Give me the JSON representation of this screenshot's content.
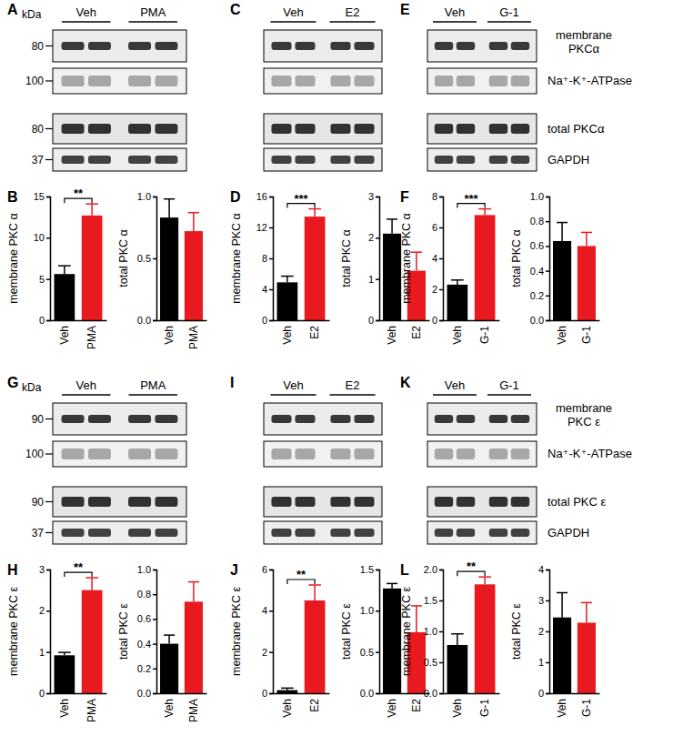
{
  "panel_labels": [
    "A",
    "B",
    "C",
    "D",
    "E",
    "F",
    "G",
    "H",
    "I",
    "J",
    "K",
    "L"
  ],
  "blots": [
    {
      "unit": "kDa",
      "groups": [
        "Veh",
        "PMA"
      ],
      "markers": [
        80,
        100,
        80,
        37
      ]
    },
    {
      "groups": [
        "Veh",
        "E2"
      ]
    },
    {
      "groups": [
        "Veh",
        "G-1"
      ],
      "row_labels": [
        [
          "membrane",
          "PKCα"
        ],
        [
          "Na⁺-K⁺-ATPase"
        ],
        [
          "total PKCα"
        ],
        [
          "GAPDH"
        ]
      ]
    },
    {
      "unit": "kDa",
      "groups": [
        "Veh",
        "PMA"
      ],
      "markers": [
        90,
        100,
        90,
        37
      ]
    },
    {
      "groups": [
        "Veh",
        "E2"
      ]
    },
    {
      "groups": [
        "Veh",
        "G-1"
      ],
      "row_labels": [
        [
          "membrane",
          "PKC ε"
        ],
        [
          "Na⁺-K⁺-ATPase"
        ],
        [
          "total PKC ε"
        ],
        [
          "GAPDH"
        ]
      ]
    }
  ],
  "chart_data": [
    {
      "type": "bar",
      "y_label": "membrane PKC α",
      "categories": [
        "Veh",
        "PMA"
      ],
      "values": [
        5.6,
        12.7
      ],
      "errors": [
        1.0,
        1.4
      ],
      "colors": [
        "#000000",
        "#e8191f"
      ],
      "ylim": [
        0,
        15
      ],
      "yticks": [
        0,
        5,
        10,
        15
      ],
      "annotations": [
        {
          "text": "**"
        }
      ]
    },
    {
      "type": "bar",
      "y_label": "total PKC α",
      "categories": [
        "Veh",
        "PMA"
      ],
      "values": [
        0.83,
        0.72
      ],
      "errors": [
        0.15,
        0.15
      ],
      "colors": [
        "#000000",
        "#e8191f"
      ],
      "ylim": [
        0,
        1
      ],
      "yticks": [
        {
          "value": 0,
          "label": "0.0"
        },
        {
          "value": 0.5,
          "label": "0.5"
        },
        {
          "value": 1,
          "label": "1.0"
        }
      ]
    },
    {
      "type": "bar",
      "y_label": "membrane PKC α",
      "categories": [
        "Veh",
        "E2"
      ],
      "values": [
        4.9,
        13.4
      ],
      "errors": [
        0.8,
        1.0
      ],
      "colors": [
        "#000000",
        "#e8191f"
      ],
      "ylim": [
        0,
        16
      ],
      "yticks": [
        0,
        4,
        8,
        12,
        16
      ],
      "annotations": [
        {
          "text": "***"
        }
      ]
    },
    {
      "type": "bar",
      "y_label": "total PKC α",
      "categories": [
        "Veh",
        "E2"
      ],
      "values": [
        2.1,
        1.2
      ],
      "errors": [
        0.35,
        0.45
      ],
      "colors": [
        "#000000",
        "#e8191f"
      ],
      "ylim": [
        0,
        3
      ],
      "yticks": [
        0,
        1,
        2,
        3
      ]
    },
    {
      "type": "bar",
      "y_label": "membrane PKC α",
      "categories": [
        "Veh",
        "G-1"
      ],
      "values": [
        2.3,
        6.8
      ],
      "errors": [
        0.3,
        0.4
      ],
      "colors": [
        "#000000",
        "#e8191f"
      ],
      "ylim": [
        0,
        8
      ],
      "yticks": [
        0,
        2,
        4,
        6,
        8
      ],
      "annotations": [
        {
          "text": "***"
        }
      ]
    },
    {
      "type": "bar",
      "y_label": "total PKC α",
      "categories": [
        "Veh",
        "G-1"
      ],
      "values": [
        0.64,
        0.6
      ],
      "errors": [
        0.15,
        0.11
      ],
      "colors": [
        "#000000",
        "#e8191f"
      ],
      "ylim": [
        0,
        1
      ],
      "yticks": [
        {
          "value": 0,
          "label": "0.0"
        },
        {
          "value": 0.2,
          "label": "0.2"
        },
        {
          "value": 0.4,
          "label": "0.4"
        },
        {
          "value": 0.6,
          "label": "0.6"
        },
        {
          "value": 0.8,
          "label": "0.8"
        },
        {
          "value": 1,
          "label": "1.0"
        }
      ]
    },
    {
      "type": "bar",
      "y_label": "membrane PKC ε",
      "categories": [
        "Veh",
        "PMA"
      ],
      "values": [
        0.92,
        2.5
      ],
      "errors": [
        0.07,
        0.3
      ],
      "colors": [
        "#000000",
        "#e8191f"
      ],
      "ylim": [
        0,
        3
      ],
      "yticks": [
        0,
        1,
        2,
        3
      ],
      "annotations": [
        {
          "text": "**"
        }
      ]
    },
    {
      "type": "bar",
      "y_label": "total PKC ε",
      "categories": [
        "Veh",
        "PMA"
      ],
      "values": [
        0.4,
        0.74
      ],
      "errors": [
        0.07,
        0.16
      ],
      "colors": [
        "#000000",
        "#e8191f"
      ],
      "ylim": [
        0,
        1
      ],
      "yticks": [
        {
          "value": 0,
          "label": "0.0"
        },
        {
          "value": 0.2,
          "label": "0.2"
        },
        {
          "value": 0.4,
          "label": "0.4"
        },
        {
          "value": 0.6,
          "label": "0.6"
        },
        {
          "value": 0.8,
          "label": "0.8"
        },
        {
          "value": 1,
          "label": "1.0"
        }
      ]
    },
    {
      "type": "bar",
      "y_label": "membrane PKC ε",
      "categories": [
        "Veh",
        "E2"
      ],
      "values": [
        0.15,
        4.5
      ],
      "errors": [
        0.1,
        0.75
      ],
      "colors": [
        "#000000",
        "#e8191f"
      ],
      "ylim": [
        0,
        6
      ],
      "yticks": [
        0,
        2,
        4,
        6
      ],
      "annotations": [
        {
          "text": "**"
        }
      ]
    },
    {
      "type": "bar",
      "y_label": "total PKC ε",
      "categories": [
        "Veh",
        "E2"
      ],
      "values": [
        1.27,
        0.74
      ],
      "errors": [
        0.06,
        0.32
      ],
      "colors": [
        "#000000",
        "#e8191f"
      ],
      "ylim": [
        0,
        1.5
      ],
      "yticks": [
        {
          "value": 0,
          "label": "0.0"
        },
        {
          "value": 0.5,
          "label": "0.5"
        },
        {
          "value": 1,
          "label": "1.0"
        },
        {
          "value": 1.5,
          "label": "1.5"
        }
      ]
    },
    {
      "type": "bar",
      "y_label": "membrane PKC ε",
      "categories": [
        "Veh",
        "G-1"
      ],
      "values": [
        0.78,
        1.76
      ],
      "errors": [
        0.18,
        0.12
      ],
      "colors": [
        "#000000",
        "#e8191f"
      ],
      "ylim": [
        0,
        2
      ],
      "yticks": [
        {
          "value": 0,
          "label": "0.0"
        },
        {
          "value": 0.5,
          "label": "0.5"
        },
        {
          "value": 1,
          "label": "1.0"
        },
        {
          "value": 1.5,
          "label": "1.5"
        },
        {
          "value": 2,
          "label": "2.0"
        }
      ],
      "annotations": [
        {
          "text": "**"
        }
      ]
    },
    {
      "type": "bar",
      "y_label": "total PKC ε",
      "categories": [
        "Veh",
        "G-1"
      ],
      "values": [
        2.45,
        2.28
      ],
      "errors": [
        0.8,
        0.65
      ],
      "colors": [
        "#000000",
        "#e8191f"
      ],
      "ylim": [
        0,
        4
      ],
      "yticks": [
        0,
        1,
        2,
        3,
        4
      ]
    }
  ]
}
